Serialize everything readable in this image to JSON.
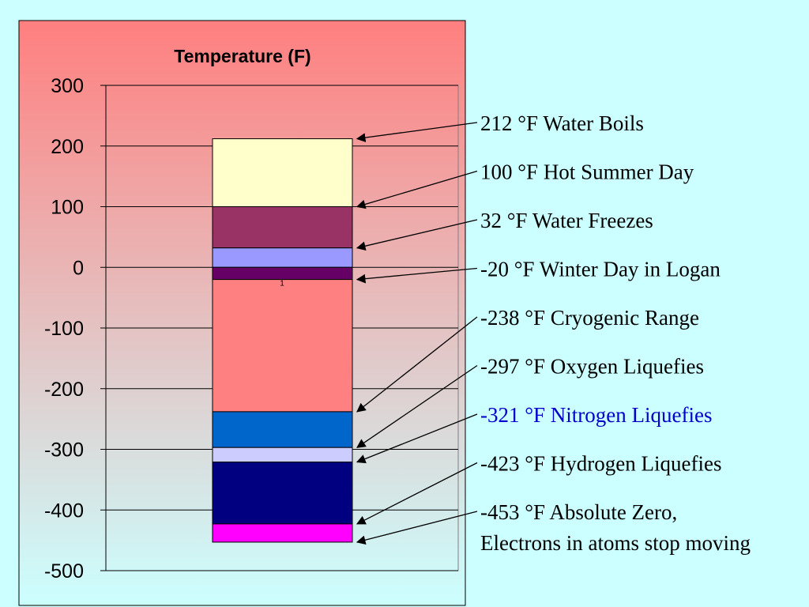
{
  "chart_data": {
    "type": "bar",
    "title": "Temperature (F)",
    "ylim": [
      -500,
      300
    ],
    "yticks": [
      300,
      200,
      100,
      0,
      -100,
      -200,
      -300,
      -400,
      -500
    ],
    "grid": true,
    "bar_label": "1",
    "segments": [
      {
        "from": 100,
        "to": 212,
        "color": "#ffffcc"
      },
      {
        "from": 32,
        "to": 100,
        "color": "#993366"
      },
      {
        "from": 0,
        "to": 32,
        "color": "#9999ff"
      },
      {
        "from": -20,
        "to": 0,
        "color": "#660066"
      },
      {
        "from": -238,
        "to": -20,
        "color": "#ff8080"
      },
      {
        "from": -297,
        "to": -238,
        "color": "#0066cc"
      },
      {
        "from": -321,
        "to": -297,
        "color": "#ccccff"
      },
      {
        "from": -423,
        "to": -321,
        "color": "#000080"
      },
      {
        "from": -453,
        "to": -423,
        "color": "#ff00ff"
      }
    ],
    "annotations": [
      {
        "value": 212,
        "text": "212 °F Water Boils"
      },
      {
        "value": 100,
        "text": "100 °F Hot Summer Day"
      },
      {
        "value": 32,
        "text": "32 °F Water Freezes"
      },
      {
        "value": -20,
        "text": "-20 °F Winter Day in Logan"
      },
      {
        "value": -238,
        "text": "-238 °F Cryogenic Range"
      },
      {
        "value": -297,
        "text": "-297 °F Oxygen Liquefies"
      },
      {
        "value": -321,
        "text": "-321 °F Nitrogen Liquefies",
        "color": "#0000cc"
      },
      {
        "value": -423,
        "text": "-423 °F Hydrogen Liquefies"
      },
      {
        "value": -453,
        "text": "-453 °F Absolute Zero,",
        "text2": "Electrons in atoms stop moving"
      }
    ]
  },
  "colors": {
    "background": "#ccffff",
    "chart_top": "#ff7f7f",
    "chart_bottom": "#ccffff"
  }
}
